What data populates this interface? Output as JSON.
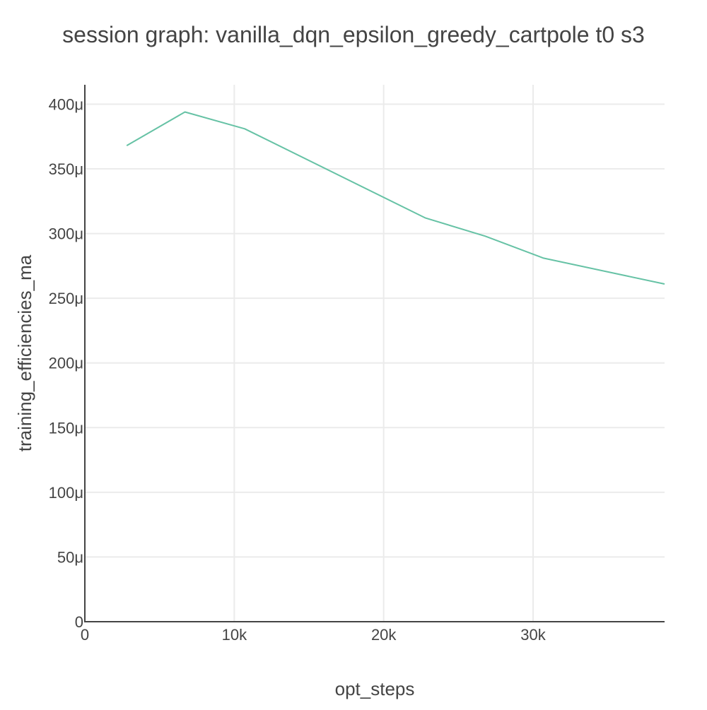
{
  "chart_data": {
    "type": "line",
    "title": "session graph: vanilla_dqn_epsilon_greedy_cartpole t0 s3",
    "xlabel": "opt_steps",
    "ylabel": "training_efficiencies_ma",
    "xlim": [
      0,
      38800
    ],
    "ylim": [
      0,
      0.000415
    ],
    "grid": true,
    "xticks": [
      {
        "value": 0,
        "label": "0"
      },
      {
        "value": 10000,
        "label": "10k"
      },
      {
        "value": 20000,
        "label": "20k"
      },
      {
        "value": 30000,
        "label": "30k"
      }
    ],
    "yticks": [
      {
        "value": 0,
        "label": "0"
      },
      {
        "value": 5e-05,
        "label": "50μ"
      },
      {
        "value": 0.0001,
        "label": "100μ"
      },
      {
        "value": 0.00015,
        "label": "150μ"
      },
      {
        "value": 0.0002,
        "label": "200μ"
      },
      {
        "value": 0.00025,
        "label": "250μ"
      },
      {
        "value": 0.0003,
        "label": "300μ"
      },
      {
        "value": 0.00035,
        "label": "350μ"
      },
      {
        "value": 0.0004,
        "label": "400μ"
      }
    ],
    "series": [
      {
        "color": "#66c2a5",
        "x": [
          2800,
          6700,
          10700,
          22800,
          26800,
          30700,
          38800
        ],
        "y": [
          0.000368,
          0.000394,
          0.000381,
          0.000312,
          0.000298,
          0.000281,
          0.000261
        ]
      }
    ]
  }
}
